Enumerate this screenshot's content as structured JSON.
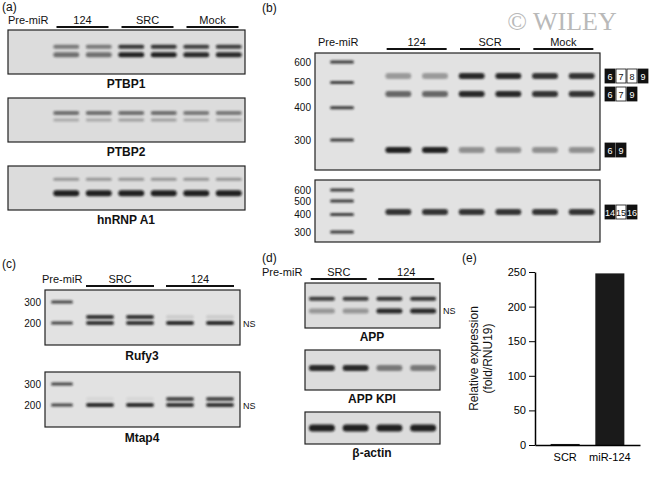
{
  "watermark": "© WILEY",
  "panels": {
    "a": {
      "letter": "(a)",
      "header": "Pre-miR",
      "groups": [
        "124",
        "SRC",
        "Mock"
      ],
      "blots": [
        "PTBP1",
        "PTBP2",
        "hnRNP A1"
      ]
    },
    "b": {
      "letter": "(b)",
      "header": "Pre-miR",
      "groups": [
        "124",
        "SCR",
        "Mock"
      ],
      "ladder": [
        600,
        500,
        400,
        300
      ],
      "gels": [
        {
          "products": [
            [
              "6",
              "7",
              "8",
              "9"
            ],
            [
              "6",
              "7",
              "9"
            ],
            [
              "6",
              "9"
            ]
          ]
        },
        {
          "products": [
            [
              "14",
              "15",
              "16"
            ]
          ]
        }
      ]
    },
    "c": {
      "letter": "(c)",
      "header": "Pre-miR",
      "groups": [
        "SRC",
        "124"
      ],
      "ladder": [
        300,
        200
      ],
      "gels": [
        "Rufy3",
        "Mtap4"
      ],
      "ns_label": "NS"
    },
    "d": {
      "letter": "(d)",
      "header": "Pre-miR",
      "groups": [
        "SRC",
        "124"
      ],
      "blots": [
        "APP",
        "APP KPI",
        "β-actin"
      ],
      "ns_label": "NS"
    }
  },
  "chart_data": {
    "type": "bar",
    "title": "(e)",
    "categories": [
      "SCR",
      "miR-124"
    ],
    "values": [
      1.5,
      248
    ],
    "color": "#1a1a1a",
    "ylabel": [
      "Relative expression",
      "(fold/RNU19)"
    ],
    "ylim": [
      0,
      250
    ],
    "yticks": [
      0,
      50,
      100,
      150,
      200,
      250
    ]
  }
}
